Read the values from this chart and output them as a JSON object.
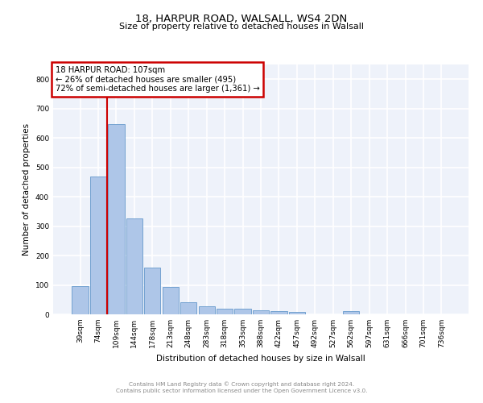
{
  "title1": "18, HARPUR ROAD, WALSALL, WS4 2DN",
  "title2": "Size of property relative to detached houses in Walsall",
  "xlabel": "Distribution of detached houses by size in Walsall",
  "ylabel": "Number of detached properties",
  "categories": [
    "39sqm",
    "74sqm",
    "109sqm",
    "144sqm",
    "178sqm",
    "213sqm",
    "248sqm",
    "283sqm",
    "318sqm",
    "353sqm",
    "388sqm",
    "422sqm",
    "457sqm",
    "492sqm",
    "527sqm",
    "562sqm",
    "597sqm",
    "631sqm",
    "666sqm",
    "701sqm",
    "736sqm"
  ],
  "values": [
    95,
    470,
    648,
    325,
    160,
    92,
    42,
    27,
    20,
    20,
    15,
    10,
    7,
    0,
    0,
    10,
    0,
    0,
    0,
    0,
    0
  ],
  "bar_color": "#aec6e8",
  "bar_edge_color": "#6699cc",
  "annotation_label": "18 HARPUR ROAD: 107sqm",
  "annotation_line1": "← 26% of detached houses are smaller (495)",
  "annotation_line2": "72% of semi-detached houses are larger (1,361) →",
  "vline_color": "#cc0000",
  "annotation_box_color": "#cc0000",
  "background_color": "#eef2fa",
  "grid_color": "#ffffff",
  "footer_line1": "Contains HM Land Registry data © Crown copyright and database right 2024.",
  "footer_line2": "Contains public sector information licensed under the Open Government Licence v3.0.",
  "ylim": [
    0,
    850
  ],
  "yticks": [
    0,
    100,
    200,
    300,
    400,
    500,
    600,
    700,
    800
  ]
}
